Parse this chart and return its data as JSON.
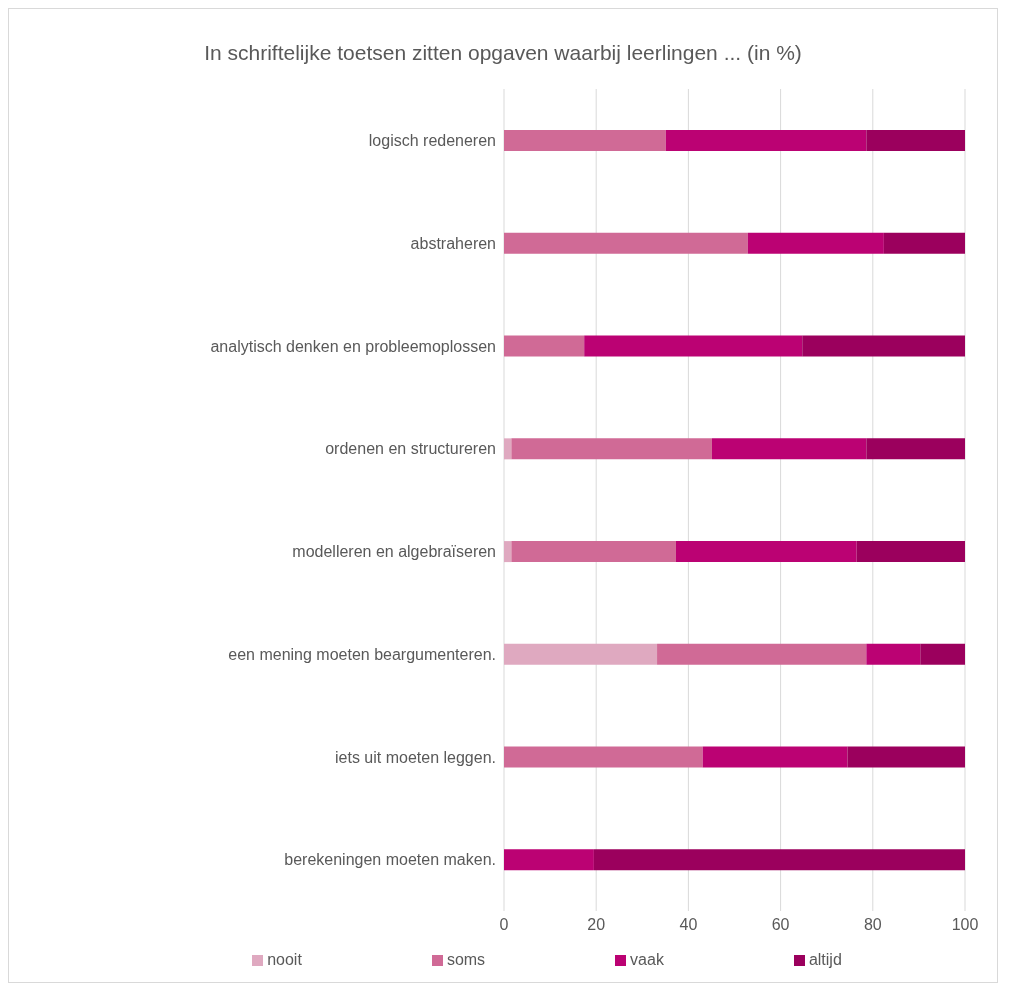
{
  "chart_data": {
    "type": "bar",
    "orientation": "horizontal",
    "stacked": true,
    "title": "In schriftelijke toetsen zitten opgaven waarbij leerlingen ... (in %)",
    "categories": [
      "logisch redeneren",
      "abstraheren",
      "analytisch denken en probleemoplossen",
      "ordenen en structureren",
      "modelleren en algebraïseren",
      "een mening moeten beargumenteren.",
      "iets uit moeten leggen.",
      "berekeningen moeten maken."
    ],
    "series": [
      {
        "name": "nooit",
        "color": "#dfa9c0",
        "values": [
          0,
          0,
          0,
          1.6,
          1.6,
          33.2,
          0,
          0
        ]
      },
      {
        "name": "soms",
        "color": "#d06a96",
        "values": [
          35.1,
          52.9,
          17.4,
          43.5,
          35.7,
          45.4,
          43.1,
          0
        ]
      },
      {
        "name": "vaak",
        "color": "#bb0273",
        "values": [
          43.5,
          29.5,
          47.3,
          33.5,
          39.2,
          11.7,
          31.4,
          19.5
        ]
      },
      {
        "name": "altijd",
        "color": "#9b005d",
        "values": [
          21.4,
          17.6,
          35.3,
          21.4,
          23.5,
          9.7,
          25.5,
          80.5
        ]
      }
    ],
    "xlim": [
      0,
      100
    ],
    "xticks": [
      0,
      20,
      40,
      60,
      80,
      100
    ],
    "grid": "x",
    "legend": "bottom"
  }
}
